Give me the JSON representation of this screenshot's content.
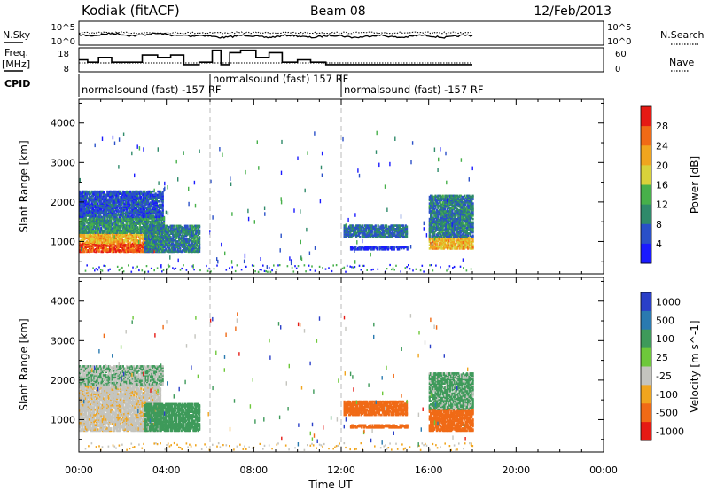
{
  "header": {
    "station": "Kodiak (fitACF)",
    "beam": "Beam 08",
    "date": "12/Feb/2013"
  },
  "status_panel": {
    "nsky": {
      "label": "N.Sky",
      "ticks": [
        "10^5",
        "10^0"
      ]
    },
    "nsearch": {
      "label": "N.Search",
      "ticks": [
        "10^5",
        "10^0"
      ]
    },
    "freq": {
      "label_line1": "Freq.",
      "label_line2": "[MHz]",
      "ticks": [
        "18",
        "8"
      ]
    },
    "nave": {
      "label": "Nave",
      "ticks": [
        "60",
        "0"
      ]
    },
    "cpid": {
      "label": "CPID",
      "segments": [
        {
          "text": "normalsound (fast) -157 RF",
          "start_hour": 0,
          "row": 1
        },
        {
          "text": "normalsound (fast) 157 RF",
          "start_hour": 6,
          "row": 0
        },
        {
          "text": "normalsound (fast) -157 RF",
          "start_hour": 12,
          "row": 1
        }
      ]
    },
    "freq_steps": [
      [
        0,
        13
      ],
      [
        0.4,
        12
      ],
      [
        0.9,
        14
      ],
      [
        1.5,
        12
      ],
      [
        2.2,
        12
      ],
      [
        2.9,
        15
      ],
      [
        3.6,
        14
      ],
      [
        4.2,
        15
      ],
      [
        4.8,
        11
      ],
      [
        5.5,
        12
      ],
      [
        6.1,
        17
      ],
      [
        6.5,
        11
      ],
      [
        6.9,
        16
      ],
      [
        7.4,
        17
      ],
      [
        8.1,
        14
      ],
      [
        8.7,
        16
      ],
      [
        9.3,
        12
      ],
      [
        10.0,
        13
      ],
      [
        10.6,
        12
      ],
      [
        11.3,
        11
      ],
      [
        12.0,
        11
      ],
      [
        18.0,
        11
      ]
    ]
  },
  "chart_data": [
    {
      "type": "heatmap",
      "title": "Power",
      "xlabel": "",
      "ylabel": "Slant Range [km]",
      "xlim": [
        0,
        24
      ],
      "ylim": [
        180,
        4600
      ],
      "y_ticks": [
        1000,
        2000,
        3000,
        4000
      ],
      "colorbar": {
        "label": "Power [dB]",
        "range": [
          0,
          32
        ],
        "ticks": [
          "4",
          "8",
          "12",
          "16",
          "20",
          "24",
          "28"
        ],
        "tick_values": [
          4,
          8,
          12,
          16,
          20,
          24,
          28
        ],
        "colors": [
          "#1a1aff",
          "#2a50c8",
          "#2f8a6a",
          "#47b04a",
          "#d8d23a",
          "#f0a51e",
          "#f06a16",
          "#e51a14"
        ]
      },
      "regions": [
        {
          "t": [
            0.0,
            3.5
          ],
          "r": [
            750,
            1000
          ],
          "v": 27
        },
        {
          "t": [
            0.0,
            3.5
          ],
          "r": [
            1000,
            1250
          ],
          "v": 21
        },
        {
          "t": [
            0.0,
            3.9
          ],
          "r": [
            1250,
            1650
          ],
          "v": 11
        },
        {
          "t": [
            0.0,
            3.8
          ],
          "r": [
            1650,
            2300
          ],
          "v": 6
        },
        {
          "t": [
            3.0,
            5.5
          ],
          "r": [
            750,
            1450
          ],
          "v": 9
        },
        {
          "t": [
            12.1,
            15.0
          ],
          "r": [
            1150,
            1450
          ],
          "v": 8
        },
        {
          "t": [
            12.4,
            15.0
          ],
          "r": [
            830,
            900
          ],
          "v": 3
        },
        {
          "t": [
            16.0,
            18.0
          ],
          "r": [
            850,
            1150
          ],
          "v": 21
        },
        {
          "t": [
            16.0,
            18.0
          ],
          "r": [
            1150,
            2200
          ],
          "v": 9
        }
      ]
    },
    {
      "type": "heatmap",
      "title": "Velocity",
      "xlabel": "Time UT",
      "ylabel": "Slant Range [km]",
      "xlim": [
        0,
        24
      ],
      "ylim": [
        180,
        4600
      ],
      "x_ticks": [
        "00:00",
        "04:00",
        "08:00",
        "12:00",
        "16:00",
        "20:00",
        "00:00"
      ],
      "y_ticks": [
        1000,
        2000,
        3000,
        4000
      ],
      "colorbar": {
        "label": "Velocity [m s^-1]",
        "ticks": [
          "1000",
          "500",
          "100",
          "25",
          "-25",
          "-100",
          "-500",
          "-1000"
        ],
        "colors": [
          "#2a3fc8",
          "#2a7ab0",
          "#3e9a5a",
          "#6ec83a",
          "#c4c4be",
          "#f0a51e",
          "#f06a16",
          "#e51a14"
        ]
      },
      "regions": [
        {
          "t": [
            0.0,
            3.7
          ],
          "r": [
            750,
            1900
          ],
          "v": -5
        },
        {
          "t": [
            3.0,
            5.5
          ],
          "r": [
            750,
            1450
          ],
          "v": 60
        },
        {
          "t": [
            0.0,
            3.8
          ],
          "r": [
            1900,
            2400
          ],
          "v": 20
        },
        {
          "t": [
            12.1,
            15.0
          ],
          "r": [
            1150,
            1500
          ],
          "v": -150
        },
        {
          "t": [
            12.4,
            15.0
          ],
          "r": [
            830,
            900
          ],
          "v": -300
        },
        {
          "t": [
            16.0,
            18.0
          ],
          "r": [
            750,
            1300
          ],
          "v": -200
        },
        {
          "t": [
            16.0,
            18.0
          ],
          "r": [
            1300,
            2200
          ],
          "v": 40
        }
      ]
    }
  ]
}
